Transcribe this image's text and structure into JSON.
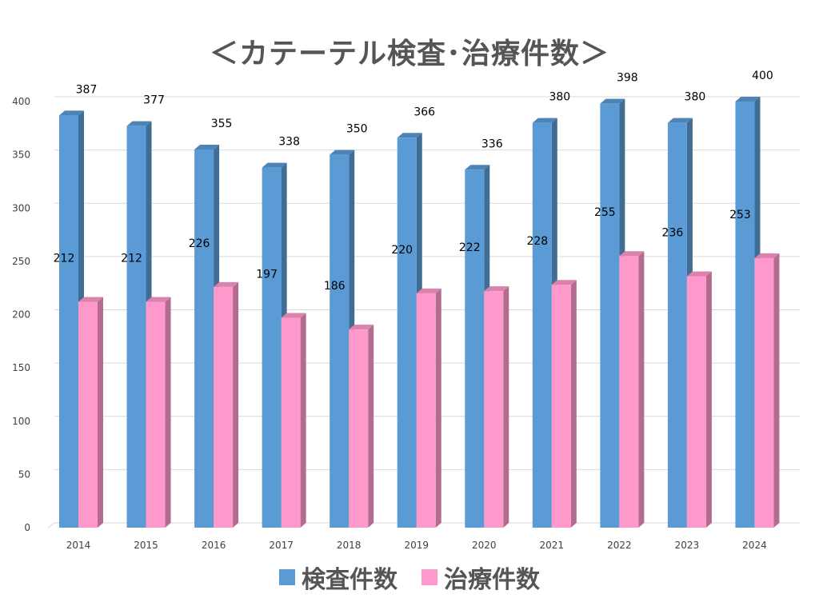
{
  "chart_data": {
    "type": "bar",
    "title": "＜カテーテル検査･治療件数＞",
    "categories": [
      "2014",
      "2015",
      "2016",
      "2017",
      "2018",
      "2019",
      "2020",
      "2021",
      "2022",
      "2023",
      "2024"
    ],
    "series": [
      {
        "name": "検査件数",
        "color": "#5B9BD5",
        "values": [
          387,
          377,
          355,
          338,
          350,
          366,
          336,
          380,
          398,
          380,
          400
        ]
      },
      {
        "name": "治療件数",
        "color": "#FF99CC",
        "values": [
          212,
          212,
          226,
          197,
          186,
          220,
          222,
          228,
          255,
          236,
          253
        ]
      }
    ],
    "ylim": [
      0,
      400
    ],
    "yticks": [
      "0",
      "50",
      "100",
      "150",
      "200",
      "250",
      "300",
      "350",
      "400"
    ],
    "grid": true,
    "legend_position": "bottom"
  }
}
